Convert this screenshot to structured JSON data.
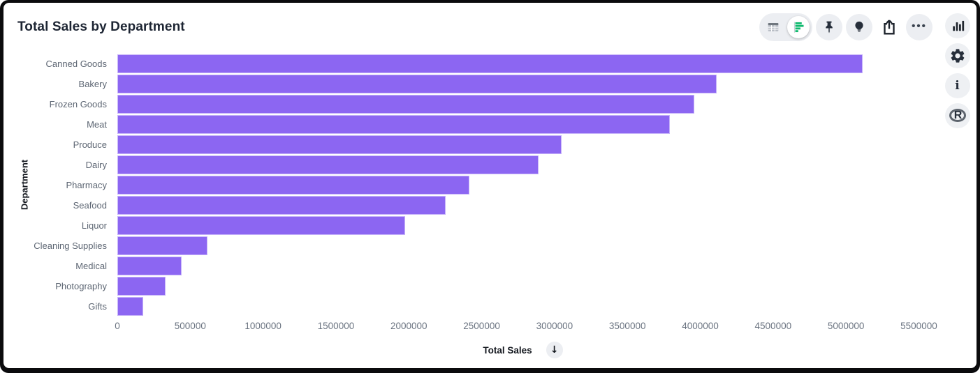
{
  "title": "Total Sales by Department",
  "icons": {
    "more_glyph": "•••",
    "info_glyph": "i",
    "r_glyph": "R",
    "sort_arrow_glyph": "↓"
  },
  "colors": {
    "bar_purple": "#8c66f2",
    "icon_green": "#10b96e",
    "icon_dark": "#262e3a",
    "button_bg": "#eceef2"
  },
  "chart_data": {
    "type": "bar",
    "orientation": "horizontal",
    "title": "Total Sales by Department",
    "categories": [
      "Canned Goods",
      "Bakery",
      "Frozen Goods",
      "Meat",
      "Produce",
      "Dairy",
      "Pharmacy",
      "Seafood",
      "Liquor",
      "Cleaning Supplies",
      "Medical",
      "Photography",
      "Gifts"
    ],
    "values": [
      5115000,
      4115000,
      3960000,
      3790000,
      3050000,
      2890000,
      2415000,
      2255000,
      1975000,
      620000,
      440000,
      330000,
      175000
    ],
    "xlabel": "Total Sales",
    "ylabel": "Department",
    "xlim": [
      0,
      5565000
    ],
    "x_ticks": [
      0,
      500000,
      1000000,
      1500000,
      2000000,
      2500000,
      3000000,
      3500000,
      4000000,
      4500000,
      5000000,
      5500000
    ],
    "bar_color": "#8c66f2",
    "grid": false,
    "legend": false,
    "sort": "descending"
  }
}
